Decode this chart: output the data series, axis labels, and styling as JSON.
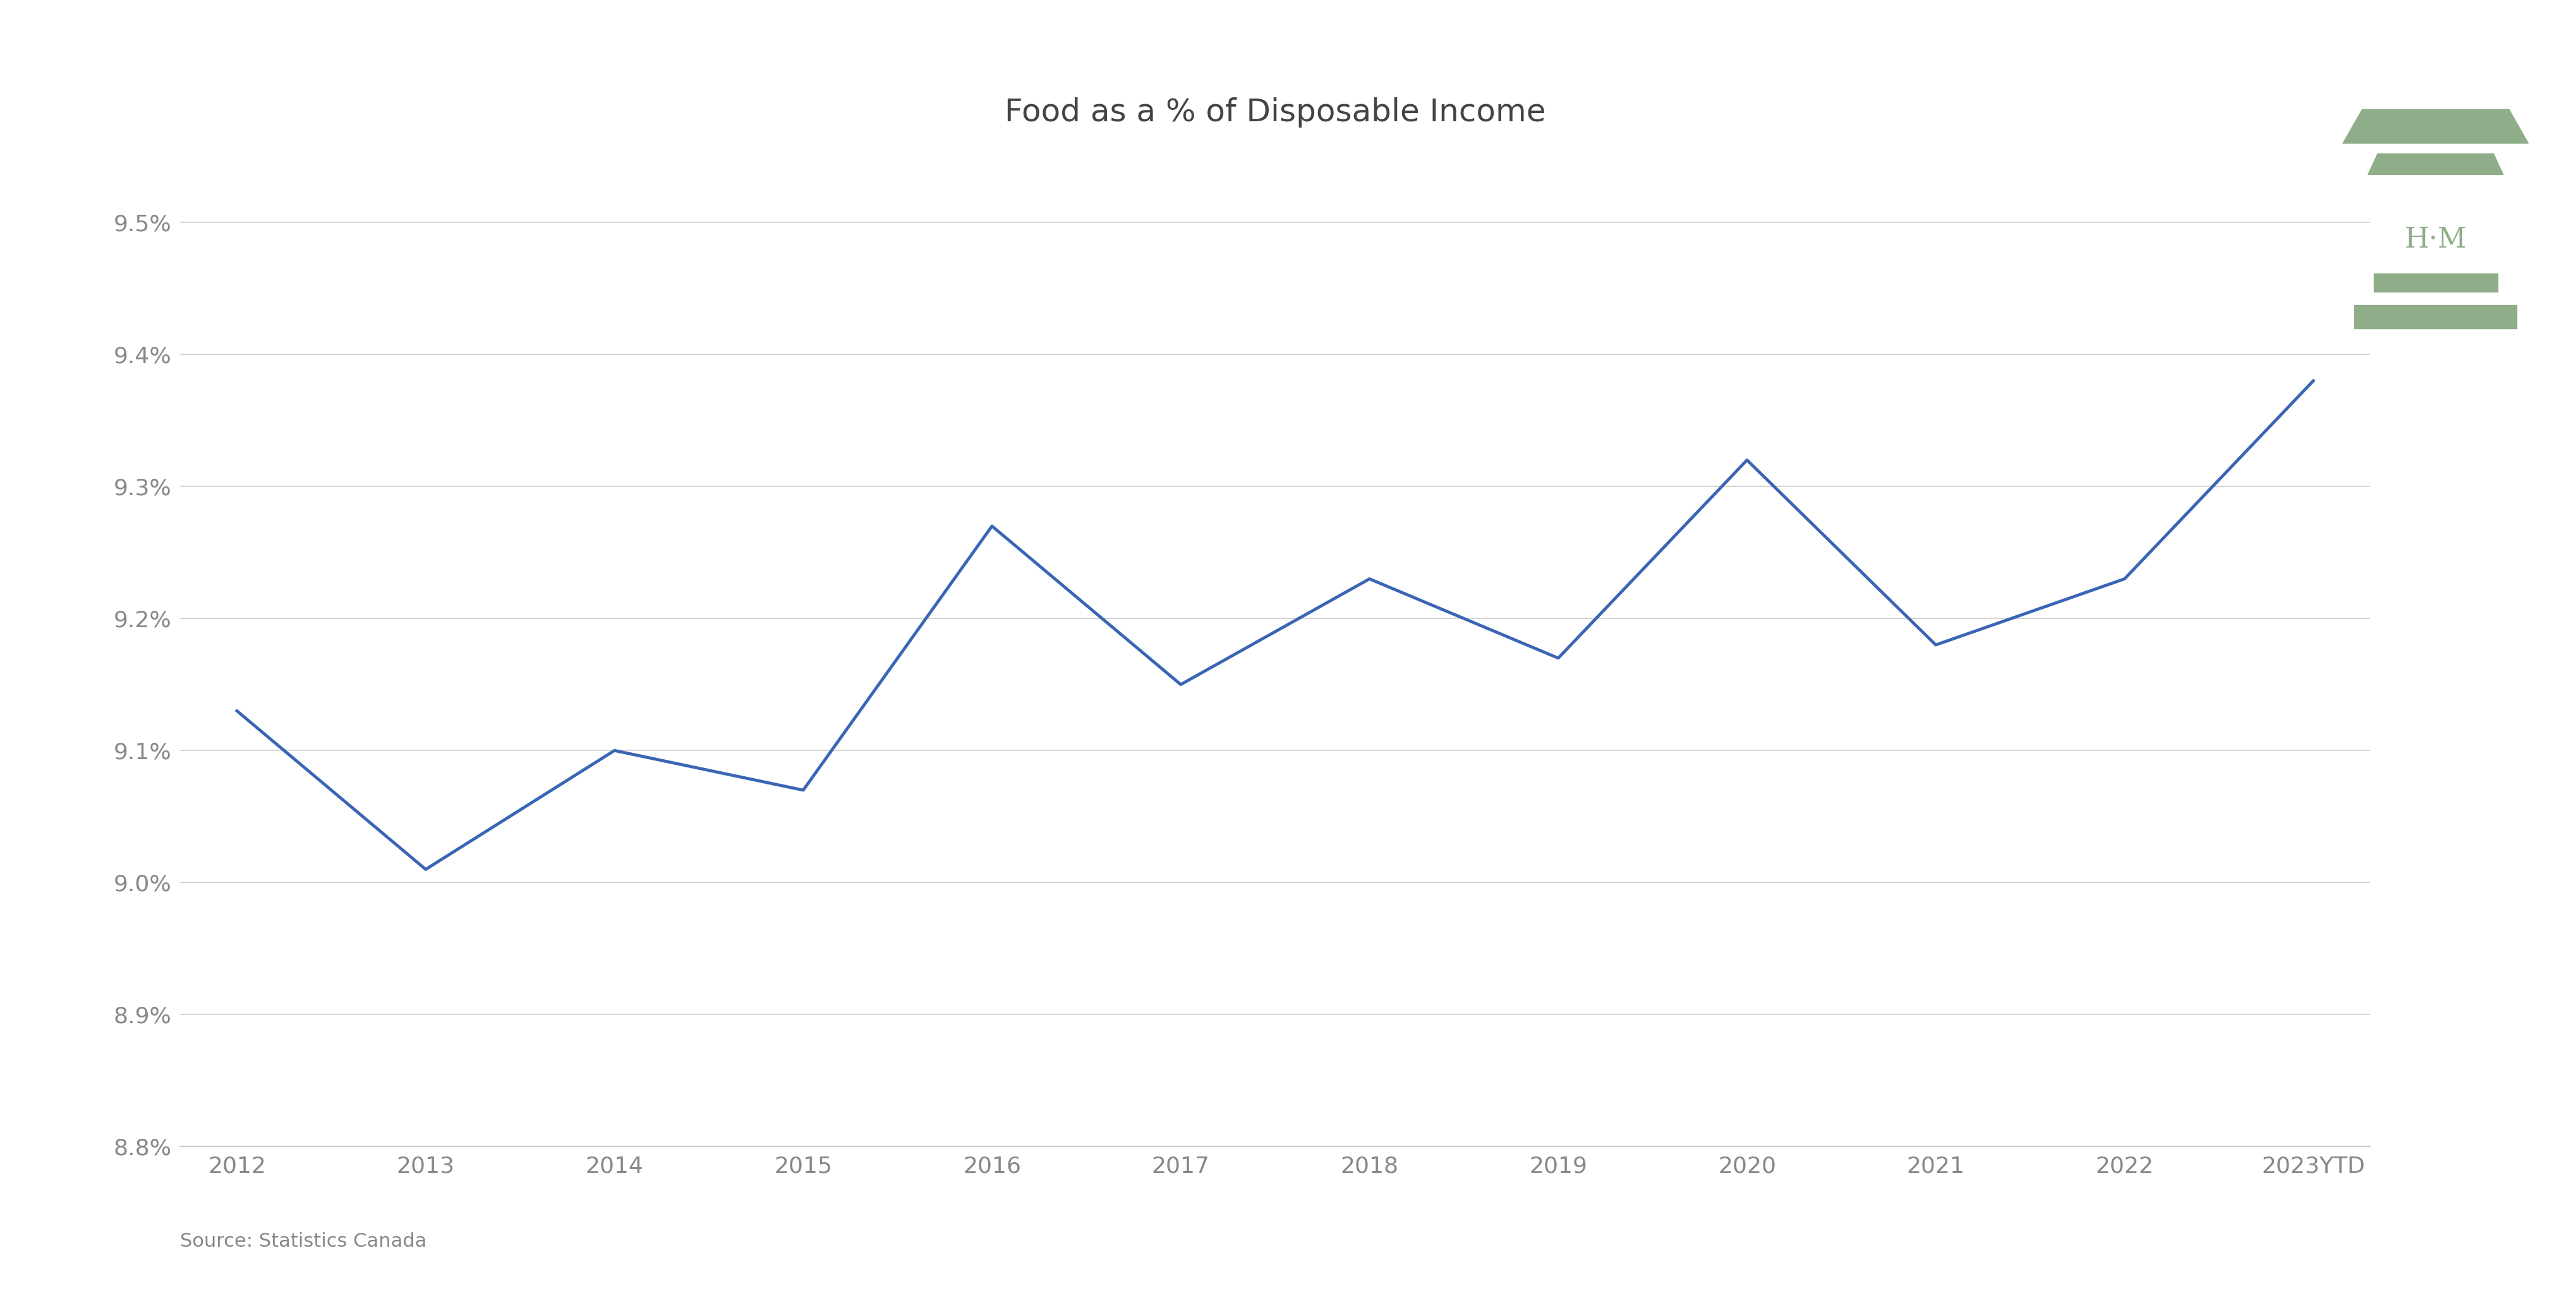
{
  "title": "Food as a % of Disposable Income",
  "x_labels": [
    "2012",
    "2013",
    "2014",
    "2015",
    "2016",
    "2017",
    "2018",
    "2019",
    "2020",
    "2021",
    "2022",
    "2023YTD"
  ],
  "y_values": [
    9.13,
    9.01,
    9.1,
    9.07,
    9.27,
    9.15,
    9.23,
    9.17,
    9.32,
    9.18,
    9.23,
    9.38
  ],
  "line_color": "#3a65b5",
  "line_width": 3.5,
  "background_color": "#ffffff",
  "y_min": 8.8,
  "y_max": 9.55,
  "y_ticks": [
    8.8,
    8.9,
    9.0,
    9.1,
    9.2,
    9.3,
    9.4,
    9.5
  ],
  "source_text": "Source: Statistics Canada",
  "title_fontsize": 36,
  "tick_fontsize": 26,
  "source_fontsize": 22,
  "tick_color": "#888888",
  "axis_color": "#cccccc",
  "logo_color": "#8fad88",
  "logo_text": "H·M"
}
